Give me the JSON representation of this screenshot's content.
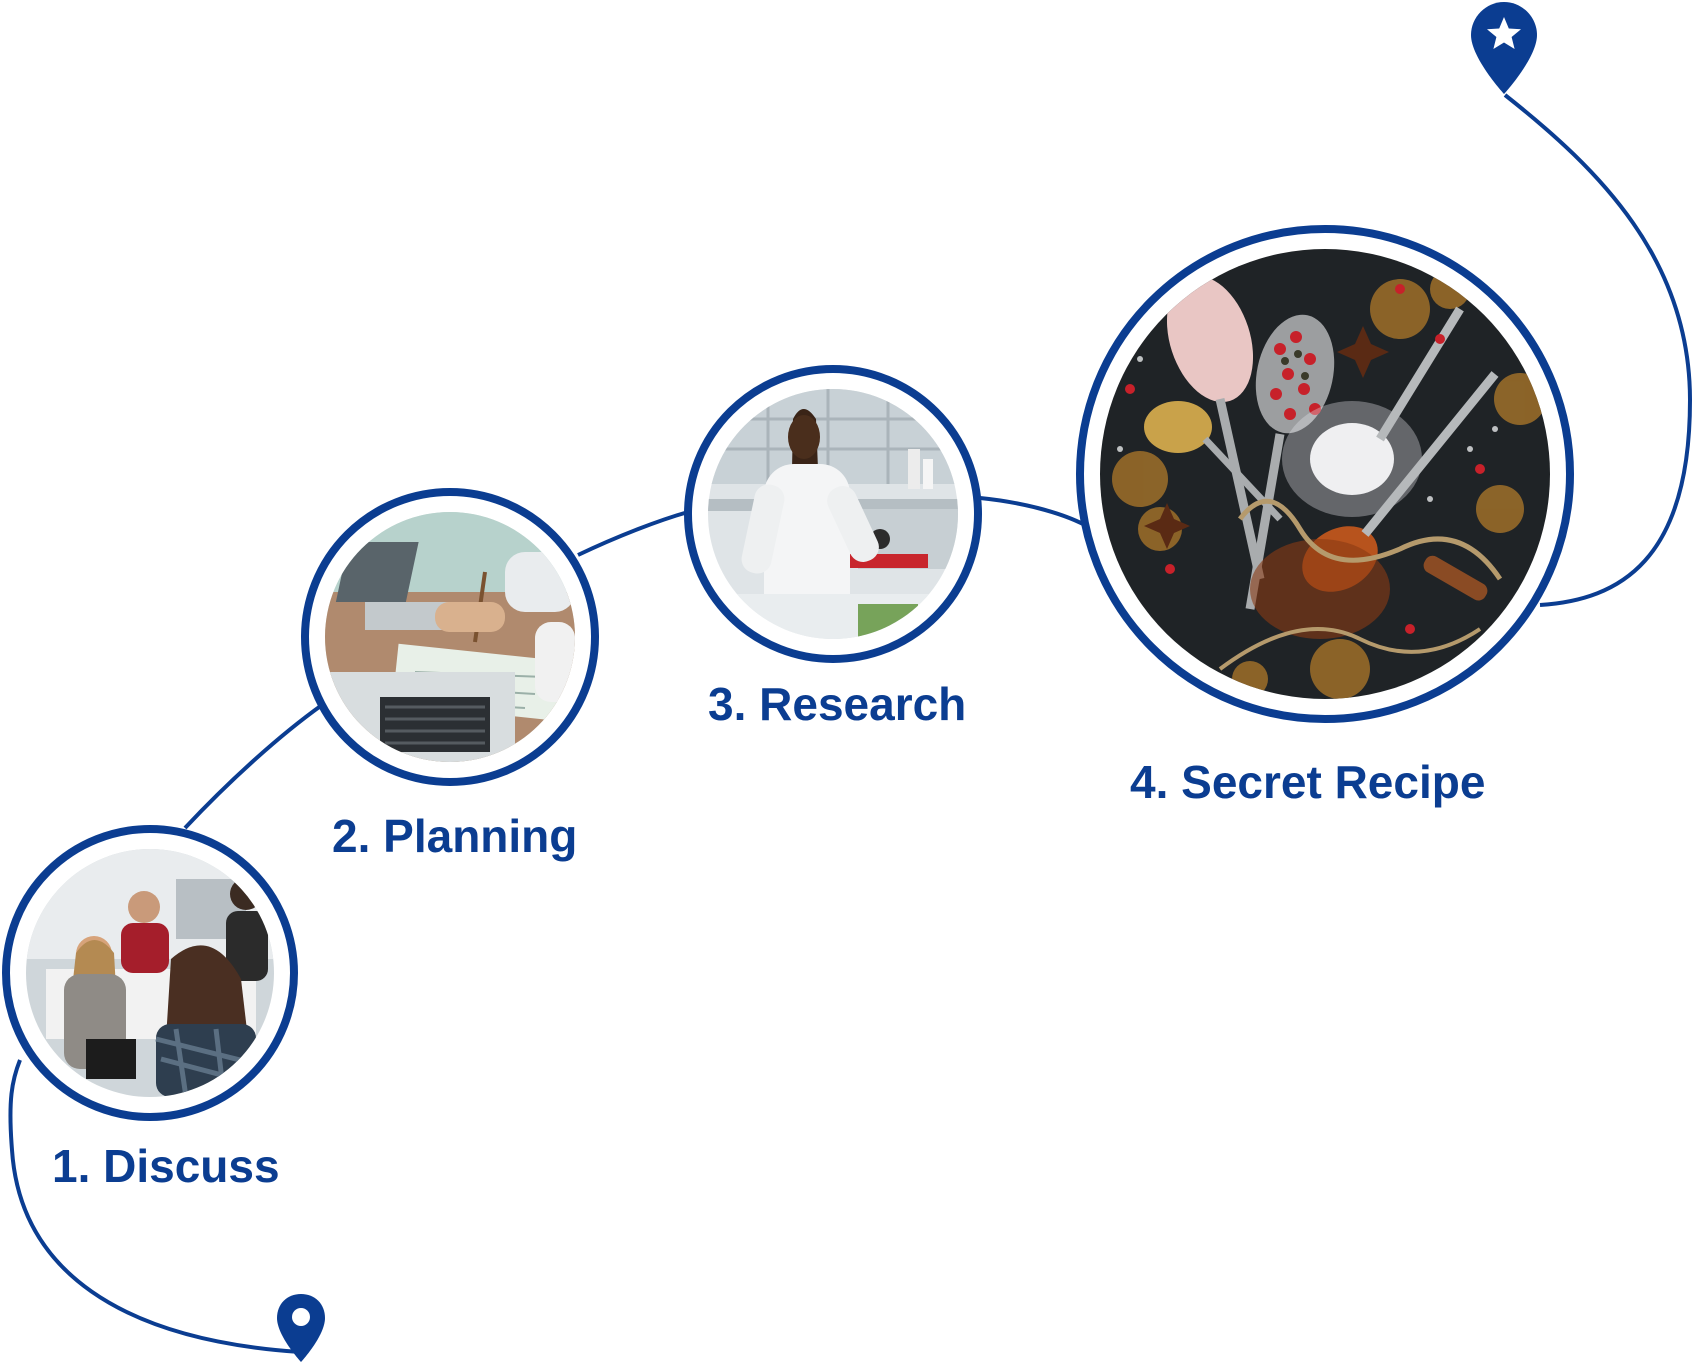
{
  "colors": {
    "accent": "#0b3d91"
  },
  "steps": [
    {
      "label": "1. Discuss",
      "image": "team-discussion-photo"
    },
    {
      "label": "2. Planning",
      "image": "laptop-planning-photo"
    },
    {
      "label": "3. Research",
      "image": "lab-research-photo"
    },
    {
      "label": "4. Secret Recipe",
      "image": "spices-photo"
    }
  ],
  "pins": {
    "start": "location-pin-icon",
    "end": "star-pin-icon"
  }
}
